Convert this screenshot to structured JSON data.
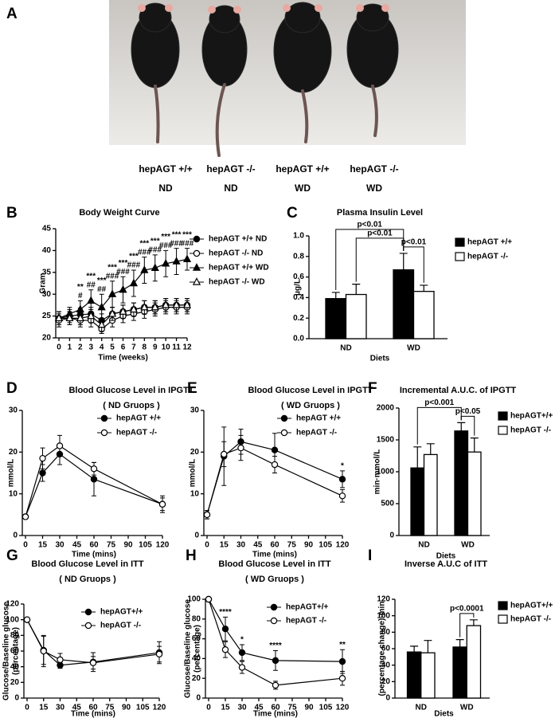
{
  "panel_a": {
    "panel": "A",
    "captions": [
      [
        "hepAGT +/+",
        "ND"
      ],
      [
        "hepAGT -/-",
        "ND"
      ],
      [
        "hepAGT +/+",
        "WD"
      ],
      [
        "hepAGT -/-",
        "WD"
      ]
    ]
  },
  "chart_data": [
    {
      "panel": "B",
      "type": "line",
      "title": "Body Weight Curve",
      "xlabel": "Time (weeks)",
      "ylabel": "Gram",
      "x": [
        0,
        1,
        2,
        3,
        4,
        5,
        6,
        7,
        8,
        9,
        10,
        11,
        12
      ],
      "xlim": [
        0,
        12
      ],
      "xticks": [
        0,
        1,
        2,
        3,
        4,
        5,
        6,
        7,
        8,
        9,
        10,
        11,
        12
      ],
      "ylim": [
        20,
        45
      ],
      "yticks": [
        20,
        25,
        30,
        35,
        40,
        45
      ],
      "series": [
        {
          "name": "hepAGT +/+ ND",
          "color": "#000000",
          "fill": "#000000",
          "marker": "circle",
          "values": [
            24.5,
            25,
            25.3,
            25.5,
            24,
            25.5,
            26,
            26.5,
            27,
            27,
            27.5,
            27.5,
            27.5
          ],
          "errors": [
            1.5,
            1.5,
            1.5,
            1.5,
            1.5,
            1.5,
            1.5,
            1.5,
            1.5,
            1.5,
            1.5,
            1.5,
            1.5
          ]
        },
        {
          "name": "hepAGT  -/- ND",
          "color": "#000000",
          "fill": "#ffffff",
          "marker": "circle",
          "values": [
            24,
            24.5,
            24,
            24,
            22,
            24,
            25,
            25.5,
            26,
            26.5,
            27,
            27,
            27
          ],
          "errors": [
            1.5,
            1.5,
            1.5,
            1.5,
            1,
            1.5,
            1.5,
            1.5,
            1.5,
            1.5,
            1.5,
            1.5,
            1.5
          ]
        },
        {
          "name": "hepAGT +/+ WD",
          "color": "#000000",
          "fill": "#000000",
          "marker": "triangle",
          "values": [
            24.5,
            25.5,
            26.5,
            28.5,
            27,
            30,
            31,
            32.5,
            35.5,
            36,
            37,
            37.5,
            38
          ],
          "errors": [
            1.5,
            1.5,
            2,
            2.5,
            3,
            3,
            3,
            3,
            3,
            3,
            3,
            3,
            2.5
          ]
        },
        {
          "name": "hepAGT  -/- WD",
          "color": "#000000",
          "fill": "#ffffff",
          "marker": "triangle",
          "values": [
            24.5,
            24.5,
            24.5,
            25,
            23,
            25.5,
            26,
            26.5,
            27,
            27,
            27.5,
            27.5,
            27.5
          ],
          "errors": [
            1.5,
            1.5,
            1.5,
            1.5,
            1.5,
            1.5,
            1.5,
            1.5,
            1.5,
            1.5,
            1.5,
            1.5,
            1.5
          ]
        }
      ],
      "annotations": {
        "stars": [
          null,
          null,
          "**",
          "***",
          "***",
          "***",
          "***",
          "***",
          "***",
          "***",
          "***",
          "***",
          "***"
        ],
        "hashes": [
          null,
          null,
          "#",
          "##",
          "##",
          "###",
          "###",
          "###",
          "###",
          "###",
          "###",
          "###",
          "###"
        ]
      }
    },
    {
      "panel": "C",
      "type": "bar",
      "title": "Plasma Insulin Level",
      "xlabel": "Diets",
      "ylabel": "μg/L",
      "categories": [
        "ND",
        "WD"
      ],
      "ylim": [
        0,
        1
      ],
      "yticks": [
        {
          "value": 0,
          "label": "0.0"
        },
        0.2,
        0.4,
        0.6,
        0.8,
        {
          "value": 1,
          "label": "1.0"
        }
      ],
      "series": [
        {
          "name": "hepAGT +/+",
          "color": "#000000",
          "values": [
            0.39,
            0.67
          ],
          "errors": [
            0.06,
            0.16
          ]
        },
        {
          "name": "hepAGT -/-",
          "color": "#ffffff",
          "values": [
            0.43,
            0.46
          ],
          "errors": [
            0.1,
            0.06
          ]
        }
      ],
      "comparisons": [
        {
          "from": [
            0,
            0
          ],
          "to": [
            0,
            1
          ],
          "label": "p<0.01"
        },
        {
          "from": [
            1,
            0
          ],
          "to": [
            0,
            1
          ],
          "label": "p<0.01"
        },
        {
          "from": [
            0,
            1
          ],
          "to": [
            1,
            1
          ],
          "label": "p<0.01"
        }
      ]
    },
    {
      "panel": "D",
      "type": "line",
      "title": "Blood Glucose Level in IPGTT",
      "subtitle": "( ND Gruops )",
      "xlabel": "Time (mins)",
      "ylabel": "mmol/L",
      "x": [
        0,
        15,
        30,
        60,
        120
      ],
      "xlim": [
        0,
        120
      ],
      "xticks": [
        0,
        15,
        30,
        45,
        60,
        75,
        90,
        105,
        120
      ],
      "ylim": [
        0,
        30
      ],
      "yticks": [
        0,
        10,
        20,
        30
      ],
      "series": [
        {
          "name": "hepAGT +/+",
          "color": "#000000",
          "fill": "#000000",
          "marker": "circle",
          "values": [
            4.5,
            15,
            19.5,
            13.5,
            7.5
          ],
          "errors": [
            0.5,
            2,
            2.5,
            4,
            2
          ]
        },
        {
          "name": "hepAGT -/-",
          "color": "#000000",
          "fill": "#ffffff",
          "marker": "circle",
          "values": [
            4.5,
            18.5,
            21.5,
            16,
            7.5
          ],
          "errors": [
            0.5,
            2.5,
            2.5,
            1.5,
            1.5
          ]
        }
      ]
    },
    {
      "panel": "E",
      "type": "line",
      "title": "Blood Glucose Level in IPGTT",
      "subtitle": "( WD Gruops )",
      "xlabel": "Time (mins)",
      "ylabel": "mmol/L",
      "x": [
        0,
        15,
        30,
        60,
        120
      ],
      "xlim": [
        0,
        120
      ],
      "xticks": [
        0,
        15,
        30,
        45,
        60,
        75,
        90,
        105,
        120
      ],
      "ylim": [
        0,
        30
      ],
      "yticks": [
        0,
        10,
        20,
        30
      ],
      "series": [
        {
          "name": "hepAGT +/+",
          "color": "#000000",
          "fill": "#000000",
          "marker": "circle",
          "values": [
            5,
            19,
            22.5,
            20.5,
            13.5
          ],
          "errors": [
            1,
            7,
            3,
            4,
            2
          ]
        },
        {
          "name": "hepAGT -/-",
          "color": "#000000",
          "fill": "#ffffff",
          "marker": "circle",
          "values": [
            5,
            19.5,
            21,
            17,
            9.5
          ],
          "errors": [
            1,
            3,
            3,
            2,
            1.5
          ]
        }
      ],
      "annotations": {
        "stars": [
          null,
          null,
          null,
          null,
          "*"
        ]
      }
    },
    {
      "panel": "F",
      "type": "bar",
      "title": "Incremental A.U.C. of IPGTT",
      "xlabel": "Diets",
      "ylabel": "min·mmol/L",
      "categories": [
        "ND",
        "WD"
      ],
      "ylim": [
        0,
        2000
      ],
      "yticks": [
        0,
        500,
        1000,
        1500,
        2000
      ],
      "series": [
        {
          "name": "hepAGT+/+",
          "color": "#000000",
          "values": [
            1060,
            1640
          ],
          "errors": [
            330,
            130
          ]
        },
        {
          "name": "hepAGT -/-",
          "color": "#ffffff",
          "values": [
            1270,
            1310
          ],
          "errors": [
            170,
            220
          ]
        }
      ],
      "comparisons": [
        {
          "from": [
            0,
            0
          ],
          "to": [
            0,
            1
          ],
          "label": "p<0.001"
        },
        {
          "from": [
            0,
            1
          ],
          "to": [
            1,
            1
          ],
          "label": "p<0.05"
        }
      ]
    },
    {
      "panel": "G",
      "type": "line",
      "title": "Blood Glucose Level in ITT",
      "subtitle": "( ND Gruops )",
      "xlabel": "Time (mins)",
      "ylabel": [
        "Glucose/Baseline glucose",
        "(percentage)"
      ],
      "x": [
        0,
        15,
        30,
        60,
        120
      ],
      "xlim": [
        0,
        120
      ],
      "xticks": [
        0,
        15,
        30,
        45,
        60,
        75,
        90,
        105,
        120
      ],
      "ylim": [
        0,
        120
      ],
      "yticks": [
        0,
        20,
        40,
        60,
        80,
        100,
        120
      ],
      "series": [
        {
          "name": "hepAGT+/+",
          "color": "#000000",
          "fill": "#000000",
          "marker": "circle",
          "values": [
            100,
            61,
            42,
            46,
            58
          ],
          "errors": [
            0,
            18,
            4,
            12,
            14
          ]
        },
        {
          "name": "hepAGT -/-",
          "color": "#000000",
          "fill": "#ffffff",
          "marker": "circle",
          "values": [
            100,
            60,
            49,
            45,
            56
          ],
          "errors": [
            0,
            20,
            8,
            8,
            10
          ]
        }
      ]
    },
    {
      "panel": "H",
      "type": "line",
      "title": "Blood Glucose Level in ITT",
      "subtitle": "( WD Gruops )",
      "xlabel": "Time (mins)",
      "ylabel": [
        "Glucose/Baseline glucose",
        "(percentage)"
      ],
      "x": [
        0,
        15,
        30,
        60,
        120
      ],
      "xlim": [
        0,
        120
      ],
      "xticks": [
        0,
        15,
        30,
        45,
        60,
        75,
        90,
        105,
        120
      ],
      "ylim": [
        0,
        100
      ],
      "yticks": [
        0,
        20,
        40,
        60,
        80,
        100
      ],
      "series": [
        {
          "name": "hepAGT+/+",
          "color": "#000000",
          "fill": "#000000",
          "marker": "circle",
          "values": [
            100,
            70,
            46,
            38,
            37
          ],
          "errors": [
            0,
            12,
            8,
            10,
            12
          ]
        },
        {
          "name": "hepAGT -/-",
          "color": "#000000",
          "fill": "#ffffff",
          "marker": "circle",
          "values": [
            100,
            49,
            31,
            13,
            20
          ],
          "errors": [
            0,
            8,
            6,
            4,
            7
          ]
        }
      ],
      "annotations": {
        "stars": [
          null,
          "****",
          "*",
          "****",
          "**"
        ]
      }
    },
    {
      "panel": "I",
      "type": "bar",
      "title": "Inverse A.U.C  of ITT",
      "xlabel": "Diets",
      "ylabel": "(percentage change)·min",
      "categories": [
        "ND",
        "WD"
      ],
      "ylim": [
        0,
        120
      ],
      "yticks": [
        0,
        20,
        40,
        60,
        80,
        100,
        120
      ],
      "series": [
        {
          "name": "hepAGT+/+",
          "color": "#000000",
          "values": [
            56,
            62
          ],
          "errors": [
            7,
            9
          ]
        },
        {
          "name": "hepAGT -/-",
          "color": "#ffffff",
          "values": [
            55,
            88
          ],
          "errors": [
            15,
            7
          ]
        }
      ],
      "comparisons": [
        {
          "from": [
            0,
            1
          ],
          "to": [
            1,
            1
          ],
          "label": "p<0.0001"
        }
      ]
    }
  ]
}
